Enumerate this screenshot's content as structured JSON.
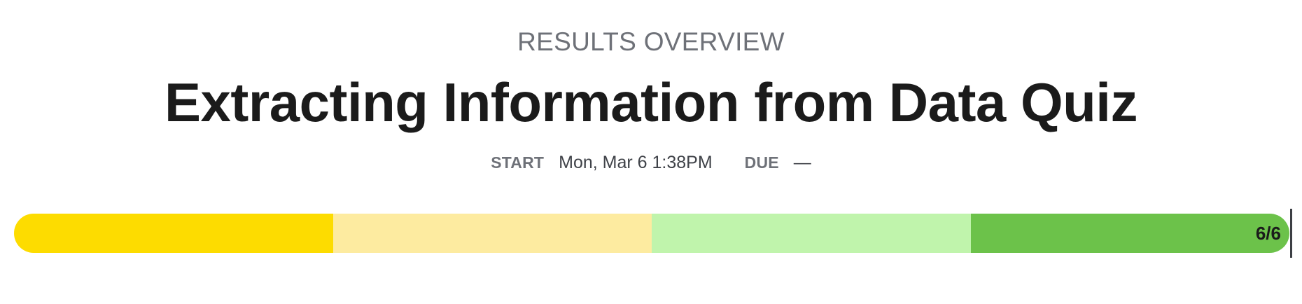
{
  "header": {
    "overline": "RESULTS OVERVIEW",
    "title": "Extracting Information from Data Quiz"
  },
  "meta": {
    "start_label": "START",
    "start_value": "Mon, Mar 6 1:38PM",
    "due_label": "DUE",
    "due_value": "—"
  },
  "progress": {
    "label": "6/6",
    "completed": 6,
    "total": 6,
    "segments": [
      {
        "color": "#fddc00"
      },
      {
        "color": "#fdeba0"
      },
      {
        "color": "#c0f4ac"
      },
      {
        "color": "#6cc24a"
      }
    ]
  }
}
